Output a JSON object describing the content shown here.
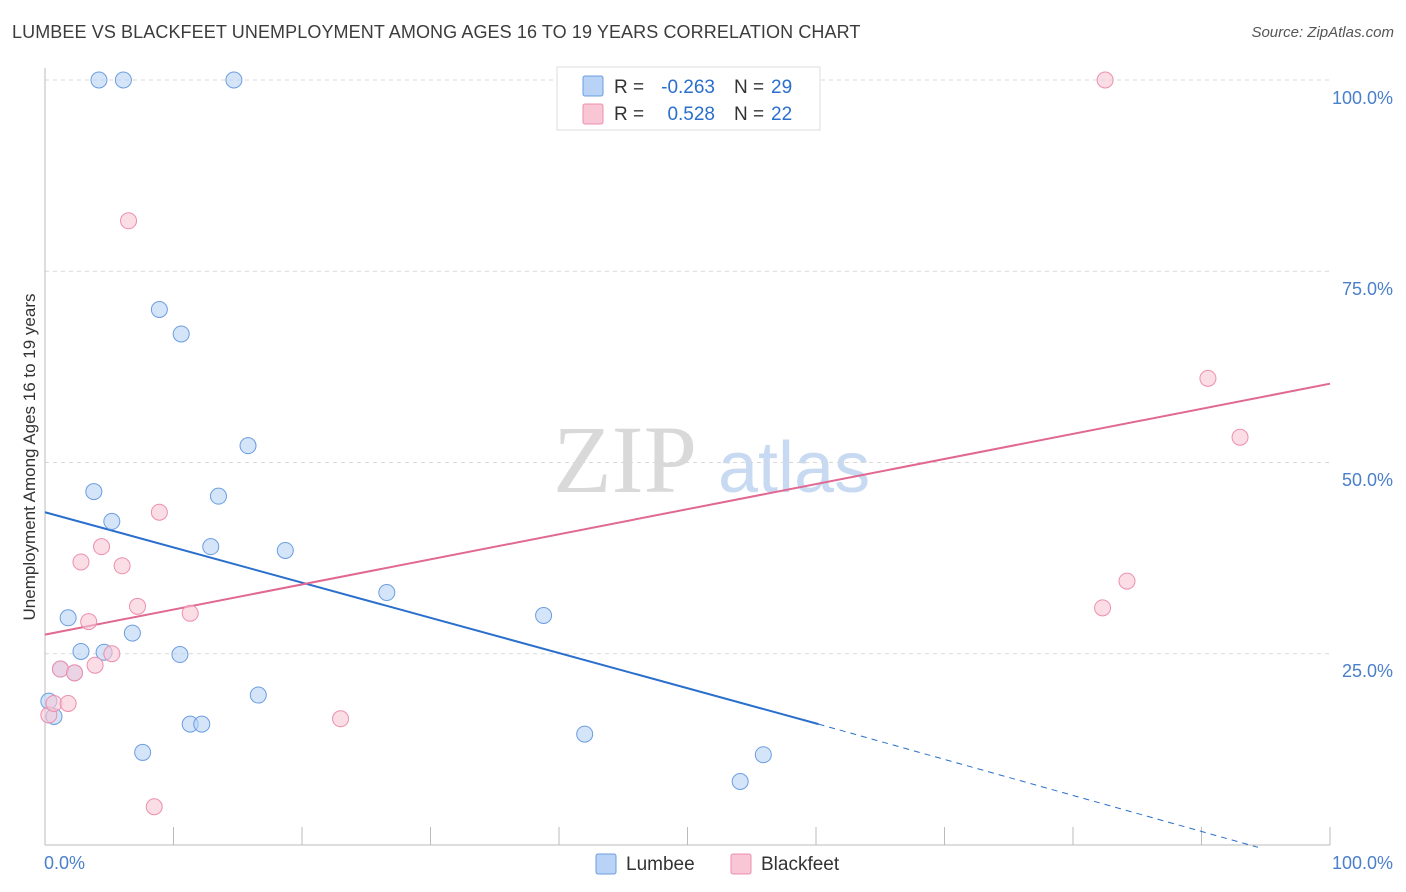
{
  "header": {
    "title": "LUMBEE VS BLACKFEET UNEMPLOYMENT AMONG AGES 16 TO 19 YEARS CORRELATION CHART",
    "source": "Source: ZipAtlas.com"
  },
  "watermark": {
    "zip": "ZIP",
    "atlas": "atlas"
  },
  "legend": {
    "r_label": "R =",
    "n_label": "N =",
    "rows": [
      {
        "r_value": "-0.263",
        "n_value": "29"
      },
      {
        "r_value": "0.528",
        "n_value": "22"
      }
    ]
  },
  "bottom_legend": {
    "lumbee": "Lumbee",
    "blackfeet": "Blackfeet"
  },
  "axis": {
    "x_left": "0.0%",
    "x_right": "100.0%",
    "y_ticks": [
      "100.0%",
      "75.0%",
      "50.0%",
      "25.0%"
    ]
  },
  "colors": {
    "lumbee_fill": "#b8d3f5",
    "lumbee_stroke": "#6c9de0",
    "lumbee_line": "#2a6fcc",
    "blackfeet_fill": "#f9c6d6",
    "blackfeet_stroke": "#ec8fae",
    "blackfeet_line": "#e06891",
    "accent_text": "#4a7fc9"
  },
  "chart_data": {
    "type": "scatter",
    "title": "LUMBEE VS BLACKFEET UNEMPLOYMENT AMONG AGES 16 TO 19 YEARS CORRELATION CHART",
    "xlabel": "",
    "ylabel": "Unemployment Among Ages 16 to 19 years",
    "xlim": [
      0,
      100
    ],
    "ylim": [
      0,
      100
    ],
    "grid": true,
    "legend_position": "top-center",
    "series": [
      {
        "name": "Lumbee",
        "r": -0.263,
        "n": 29,
        "points": [
          [
            0.3,
            18.8
          ],
          [
            0.7,
            16.8
          ],
          [
            1.2,
            23.0
          ],
          [
            1.8,
            29.7
          ],
          [
            2.3,
            22.5
          ],
          [
            2.8,
            25.3
          ],
          [
            3.8,
            46.2
          ],
          [
            5.2,
            42.3
          ],
          [
            4.6,
            25.2
          ],
          [
            6.8,
            27.7
          ],
          [
            7.6,
            12.1
          ],
          [
            4.2,
            100.0
          ],
          [
            6.1,
            100.0
          ],
          [
            14.7,
            100.0
          ],
          [
            8.9,
            70.0
          ],
          [
            10.6,
            66.8
          ],
          [
            10.5,
            24.9
          ],
          [
            11.3,
            15.8
          ],
          [
            12.2,
            15.8
          ],
          [
            12.9,
            39.0
          ],
          [
            13.5,
            45.6
          ],
          [
            15.8,
            52.2
          ],
          [
            16.6,
            19.6
          ],
          [
            18.7,
            38.5
          ],
          [
            26.6,
            33.0
          ],
          [
            38.8,
            30.0
          ],
          [
            42.0,
            14.5
          ],
          [
            54.1,
            8.3
          ],
          [
            55.9,
            11.8
          ]
        ],
        "trend": {
          "x0": 0,
          "y0": 43.5,
          "x1": 60.2,
          "y1": 15.8,
          "dash_to_x": 94.4,
          "dash_to_y": -0.3
        }
      },
      {
        "name": "Blackfeet",
        "r": 0.528,
        "n": 22,
        "points": [
          [
            0.3,
            17.0
          ],
          [
            0.7,
            18.5
          ],
          [
            1.2,
            23.0
          ],
          [
            1.8,
            18.5
          ],
          [
            2.3,
            22.5
          ],
          [
            2.8,
            37.0
          ],
          [
            3.4,
            29.2
          ],
          [
            3.9,
            23.5
          ],
          [
            4.4,
            39.0
          ],
          [
            5.2,
            25.0
          ],
          [
            6.0,
            36.5
          ],
          [
            7.2,
            31.2
          ],
          [
            6.5,
            81.6
          ],
          [
            8.5,
            5.0
          ],
          [
            8.9,
            43.5
          ],
          [
            11.3,
            30.3
          ],
          [
            23.0,
            16.5
          ],
          [
            82.5,
            100.0
          ],
          [
            82.3,
            31.0
          ],
          [
            84.2,
            34.5
          ],
          [
            90.5,
            61.0
          ],
          [
            93.0,
            53.3
          ]
        ],
        "trend": {
          "x0": 0,
          "y0": 27.5,
          "x1": 100,
          "y1": 60.3
        }
      }
    ]
  }
}
